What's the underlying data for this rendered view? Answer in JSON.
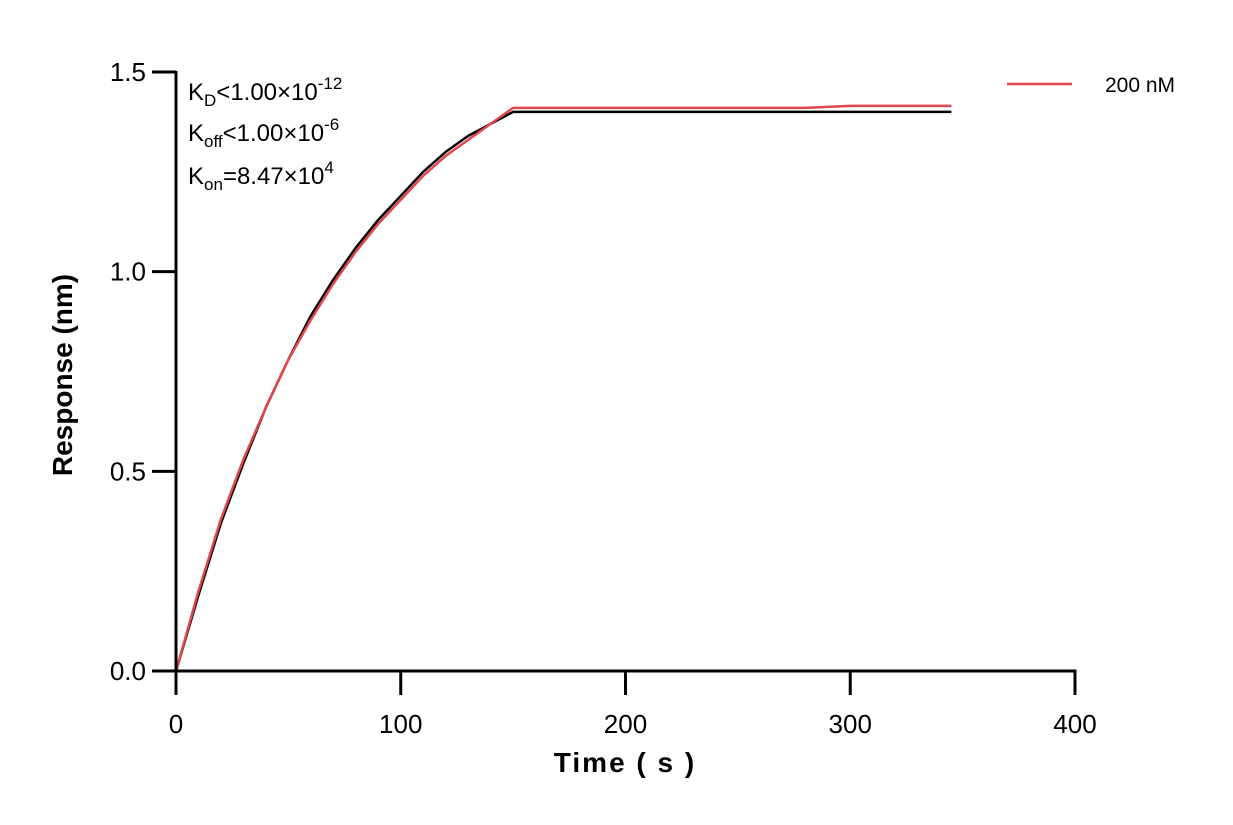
{
  "chart_data": {
    "type": "line",
    "xlabel": "Time ( s )",
    "ylabel": "Response (nm)",
    "xlim": [
      0,
      400
    ],
    "ylim": [
      0,
      1.5
    ],
    "xticks": [
      0,
      100,
      200,
      300,
      400
    ],
    "xtick_labels": [
      "0",
      "100",
      "200",
      "300",
      "400"
    ],
    "yticks": [
      0,
      0.5,
      1.0,
      1.5
    ],
    "ytick_labels": [
      "0.0",
      "0.5",
      "1.0",
      "1.5"
    ],
    "grid": false,
    "legend_position": "top-right",
    "annotations": {
      "kd": {
        "base": "K",
        "sub": "D",
        "text": "<1.00×10",
        "sup": "-12"
      },
      "koff": {
        "base": "K",
        "sub": "off",
        "text": "<1.00×10",
        "sup": "-6"
      },
      "kon": {
        "base": "K",
        "sub": "on",
        "text": "=8.47×10",
        "sup": "4"
      }
    },
    "series": [
      {
        "name": "200 nM",
        "color": "#e0474c",
        "x": [
          0,
          10,
          20,
          30,
          40,
          50,
          60,
          70,
          80,
          90,
          100,
          110,
          120,
          130,
          140,
          150,
          160,
          180,
          200,
          220,
          240,
          260,
          280,
          300,
          320,
          345
        ],
        "y": [
          0,
          0.2,
          0.38,
          0.53,
          0.66,
          0.78,
          0.88,
          0.97,
          1.05,
          1.12,
          1.18,
          1.24,
          1.29,
          1.33,
          1.37,
          1.41,
          1.41,
          1.41,
          1.41,
          1.41,
          1.41,
          1.41,
          1.41,
          1.415,
          1.415,
          1.415
        ]
      },
      {
        "color": "#000000",
        "x": [
          0,
          10,
          20,
          30,
          40,
          50,
          60,
          70,
          80,
          90,
          100,
          110,
          120,
          130,
          140,
          150,
          200,
          250,
          300,
          345
        ],
        "y": [
          0,
          0.19,
          0.37,
          0.52,
          0.66,
          0.78,
          0.89,
          0.98,
          1.06,
          1.13,
          1.19,
          1.25,
          1.3,
          1.34,
          1.37,
          1.4,
          1.4,
          1.4,
          1.4,
          1.4
        ]
      }
    ]
  }
}
